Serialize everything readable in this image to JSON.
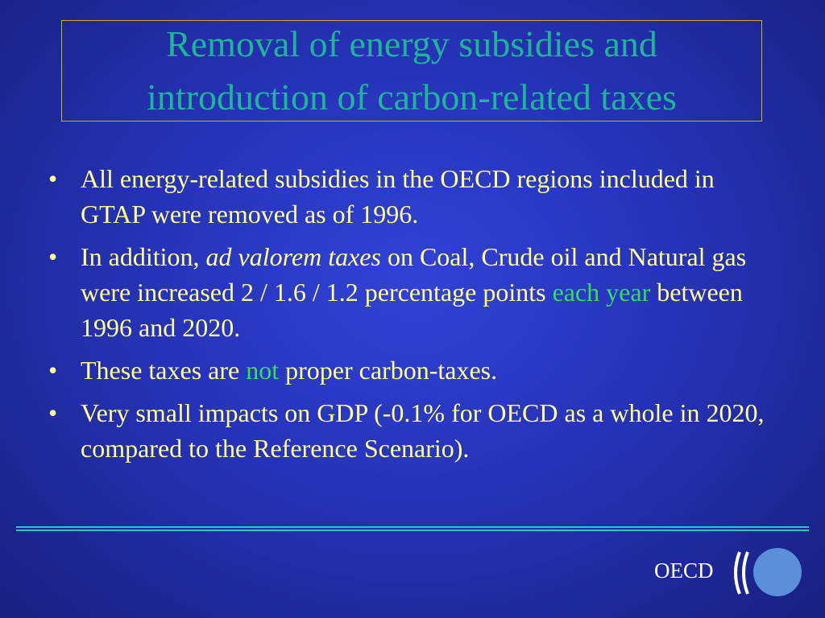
{
  "title": "Removal of energy subsidies and introduction of carbon-related taxes",
  "bullets": [
    {
      "runs": [
        "All energy-related subsidies in the OECD regions included in GTAP were removed as of 1996."
      ]
    },
    {
      "runs": [
        "In addition, ",
        "ad valorem taxes",
        " on Coal, Crude oil and Natural gas were increased 2 / 1.6 / 1.2 percentage points ",
        "each year",
        " between 1996 and 2020."
      ]
    },
    {
      "runs": [
        "These taxes are ",
        "not",
        " proper carbon-taxes."
      ]
    },
    {
      "runs": [
        "Very small impacts on GDP (-0.1% for OECD as a whole in 2020, compared to the Reference Scenario)."
      ]
    }
  ],
  "logo": "OECD"
}
